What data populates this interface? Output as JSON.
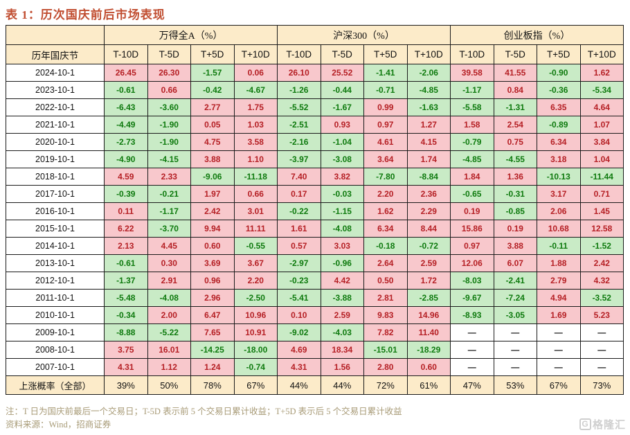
{
  "chart_data": {
    "type": "table",
    "title": "表 1：历次国庆前后市场表现",
    "row_header": "历年国庆节",
    "column_groups": [
      "万得全A（%）",
      "沪深300（%）",
      "创业板指（%）"
    ],
    "sub_columns": [
      "T-10D",
      "T-5D",
      "T+5D",
      "T+10D"
    ],
    "rows": [
      {
        "date": "2024-10-1",
        "values": [
          "26.45",
          "26.30",
          "-1.57",
          "0.06",
          "26.10",
          "25.52",
          "-1.41",
          "-2.06",
          "39.58",
          "41.55",
          "-0.90",
          "1.62"
        ]
      },
      {
        "date": "2023-10-1",
        "values": [
          "-0.61",
          "0.66",
          "-0.42",
          "-4.67",
          "-1.26",
          "-0.44",
          "-0.71",
          "-4.85",
          "-1.17",
          "0.84",
          "-0.36",
          "-5.34"
        ]
      },
      {
        "date": "2022-10-1",
        "values": [
          "-6.43",
          "-3.60",
          "2.77",
          "1.75",
          "-5.52",
          "-1.67",
          "0.99",
          "-1.63",
          "-5.58",
          "-1.31",
          "6.35",
          "4.64"
        ]
      },
      {
        "date": "2021-10-1",
        "values": [
          "-4.49",
          "-1.90",
          "0.05",
          "1.03",
          "-2.51",
          "0.93",
          "0.97",
          "1.27",
          "1.58",
          "2.54",
          "-0.89",
          "1.07"
        ]
      },
      {
        "date": "2020-10-1",
        "values": [
          "-2.73",
          "-1.90",
          "4.75",
          "3.58",
          "-2.16",
          "-1.04",
          "4.61",
          "4.15",
          "-0.79",
          "0.75",
          "6.34",
          "3.84"
        ]
      },
      {
        "date": "2019-10-1",
        "values": [
          "-4.90",
          "-4.15",
          "3.88",
          "1.10",
          "-3.97",
          "-3.08",
          "3.64",
          "1.74",
          "-4.85",
          "-4.55",
          "3.18",
          "1.04"
        ]
      },
      {
        "date": "2018-10-1",
        "values": [
          "4.59",
          "2.33",
          "-9.06",
          "-11.18",
          "7.40",
          "3.82",
          "-7.80",
          "-8.84",
          "1.84",
          "1.36",
          "-10.13",
          "-11.44"
        ]
      },
      {
        "date": "2017-10-1",
        "values": [
          "-0.39",
          "-0.21",
          "1.97",
          "0.66",
          "0.17",
          "-0.03",
          "2.20",
          "2.36",
          "-0.65",
          "-0.31",
          "3.17",
          "0.71"
        ]
      },
      {
        "date": "2016-10-1",
        "values": [
          "0.11",
          "-1.17",
          "2.42",
          "3.01",
          "-0.22",
          "-1.15",
          "1.62",
          "2.29",
          "0.19",
          "-0.85",
          "2.06",
          "1.45"
        ]
      },
      {
        "date": "2015-10-1",
        "values": [
          "6.22",
          "-3.70",
          "9.94",
          "11.11",
          "1.61",
          "-4.08",
          "6.34",
          "8.44",
          "15.86",
          "0.19",
          "10.68",
          "12.58"
        ]
      },
      {
        "date": "2014-10-1",
        "values": [
          "2.13",
          "4.45",
          "0.60",
          "-0.55",
          "0.57",
          "3.03",
          "-0.18",
          "-0.72",
          "0.97",
          "3.88",
          "-0.11",
          "-1.52"
        ]
      },
      {
        "date": "2013-10-1",
        "values": [
          "-0.61",
          "0.30",
          "3.69",
          "3.67",
          "-2.97",
          "-0.96",
          "2.64",
          "2.59",
          "12.06",
          "6.07",
          "1.88",
          "2.42"
        ]
      },
      {
        "date": "2012-10-1",
        "values": [
          "-1.37",
          "2.91",
          "0.96",
          "2.20",
          "-0.23",
          "4.42",
          "0.50",
          "1.72",
          "-8.03",
          "-2.41",
          "2.79",
          "4.32"
        ]
      },
      {
        "date": "2011-10-1",
        "values": [
          "-5.48",
          "-4.08",
          "2.96",
          "-2.50",
          "-5.41",
          "-3.88",
          "2.81",
          "-2.85",
          "-9.67",
          "-7.24",
          "4.94",
          "-3.52"
        ]
      },
      {
        "date": "2010-10-1",
        "values": [
          "-0.34",
          "2.00",
          "6.47",
          "10.96",
          "0.10",
          "2.59",
          "9.83",
          "14.96",
          "-8.93",
          "-3.05",
          "1.69",
          "5.23"
        ]
      },
      {
        "date": "2009-10-1",
        "values": [
          "-8.88",
          "-5.22",
          "7.65",
          "10.91",
          "-9.02",
          "-4.03",
          "7.82",
          "11.40",
          "—",
          "—",
          "—",
          "—"
        ]
      },
      {
        "date": "2008-10-1",
        "values": [
          "3.75",
          "16.01",
          "-14.25",
          "-18.00",
          "4.69",
          "18.34",
          "-15.01",
          "-18.29",
          "—",
          "—",
          "—",
          "—"
        ]
      },
      {
        "date": "2007-10-1",
        "values": [
          "4.31",
          "1.12",
          "1.24",
          "-0.74",
          "4.31",
          "1.56",
          "2.80",
          "0.60",
          "—",
          "—",
          "—",
          "—"
        ]
      }
    ],
    "summary_row": {
      "label": "上涨概率（全部）",
      "values": [
        "39%",
        "50%",
        "78%",
        "67%",
        "44%",
        "44%",
        "72%",
        "61%",
        "47%",
        "53%",
        "67%",
        "73%"
      ]
    },
    "notes": [
      "注：T 日为国庆前最后一个交易日；T-5D 表示前 5 个交易日累计收益；T+5D 表示后 5 个交易日累计收益",
      "资料来源：Wind，招商证券"
    ]
  },
  "watermark": {
    "icon_letter": "G",
    "text": "格隆汇"
  },
  "colors": {
    "title_accent": "#c14e31",
    "header_bg": "#fcebc9",
    "positive_bg": "#f8c8cc",
    "positive_text": "#b51f24",
    "negative_bg": "#c9ebc6",
    "negative_text": "#0e7a0e",
    "note_text": "#a89b77",
    "watermark": "#cfcfcf"
  }
}
